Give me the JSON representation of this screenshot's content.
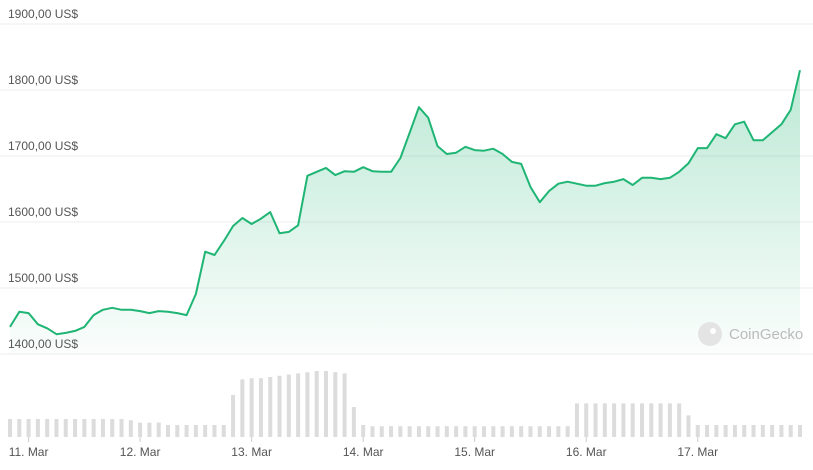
{
  "chart_data": {
    "type": "line",
    "watermark": "CoinGecko",
    "color": "#1fb574",
    "volume_color": "#dcdcdc",
    "grid": true,
    "xlim": [
      -4,
      166
    ],
    "xticks": [
      {
        "value": 0,
        "label": "11. Mar"
      },
      {
        "value": 24,
        "label": "12. Mar"
      },
      {
        "value": 48,
        "label": "13. Mar"
      },
      {
        "value": 72,
        "label": "14. Mar"
      },
      {
        "value": 96,
        "label": "15. Mar"
      },
      {
        "value": 120,
        "label": "16. Mar"
      },
      {
        "value": 144,
        "label": "17. Mar"
      }
    ],
    "ylim": [
      1400,
      1900
    ],
    "yticks": [
      {
        "value": 1400,
        "label": "1400,00 US$"
      },
      {
        "value": 1500,
        "label": "1500,00 US$"
      },
      {
        "value": 1600,
        "label": "1600,00 US$"
      },
      {
        "value": 1700,
        "label": "1700,00 US$"
      },
      {
        "value": 1800,
        "label": "1800,00 US$"
      },
      {
        "value": 1900,
        "label": "1900,00 US$"
      }
    ],
    "x": [
      -4,
      -2,
      0,
      2,
      4,
      6,
      8,
      10,
      12,
      14,
      16,
      18,
      20,
      22,
      24,
      26,
      28,
      30,
      32,
      34,
      36,
      38,
      40,
      42,
      44,
      46,
      48,
      50,
      52,
      54,
      56,
      58,
      60,
      62,
      64,
      66,
      68,
      70,
      72,
      74,
      76,
      78,
      80,
      82,
      84,
      86,
      88,
      90,
      92,
      94,
      96,
      98,
      100,
      102,
      104,
      106,
      108,
      110,
      112,
      114,
      116,
      118,
      120,
      122,
      124,
      126,
      128,
      130,
      132,
      134,
      136,
      138,
      140,
      142,
      144,
      146,
      148,
      150,
      152,
      154,
      156,
      158,
      160,
      162,
      164,
      166
    ],
    "values": [
      1441,
      1464,
      1462,
      1445,
      1439,
      1430,
      1432,
      1435,
      1441,
      1459,
      1467,
      1470,
      1467,
      1467,
      1465,
      1462,
      1465,
      1464,
      1462,
      1459,
      1491,
      1555,
      1550,
      1571,
      1594,
      1606,
      1597,
      1605,
      1615,
      1583,
      1585,
      1595,
      1670,
      1676,
      1682,
      1671,
      1677,
      1676,
      1683,
      1677,
      1676,
      1676,
      1697,
      1735,
      1774,
      1758,
      1715,
      1703,
      1705,
      1714,
      1709,
      1708,
      1711,
      1703,
      1691,
      1688,
      1653,
      1630,
      1647,
      1658,
      1661,
      1658,
      1655,
      1655,
      1659,
      1661,
      1665,
      1656,
      1667,
      1667,
      1665,
      1667,
      1676,
      1689,
      1712,
      1712,
      1733,
      1727,
      1748,
      1752,
      1724,
      1724,
      1736,
      1748,
      1770,
      1830
    ],
    "volume": [
      15,
      15,
      15,
      15,
      15,
      15,
      15,
      15,
      15,
      15,
      15,
      15,
      15,
      14,
      12,
      12,
      12,
      10,
      10,
      10,
      10,
      10,
      10,
      10,
      35,
      48,
      49,
      49,
      50,
      51,
      52,
      53,
      54,
      55,
      55,
      54,
      53,
      25,
      10,
      9,
      9,
      9,
      9,
      9,
      9,
      9,
      9,
      9,
      9,
      9,
      9,
      9,
      9,
      9,
      9,
      9,
      9,
      9,
      9,
      9,
      9,
      28,
      28,
      28,
      28,
      28,
      28,
      28,
      28,
      28,
      28,
      28,
      28,
      18,
      10,
      10,
      10,
      10,
      10,
      10,
      10,
      10,
      10,
      10,
      10,
      10
    ]
  }
}
